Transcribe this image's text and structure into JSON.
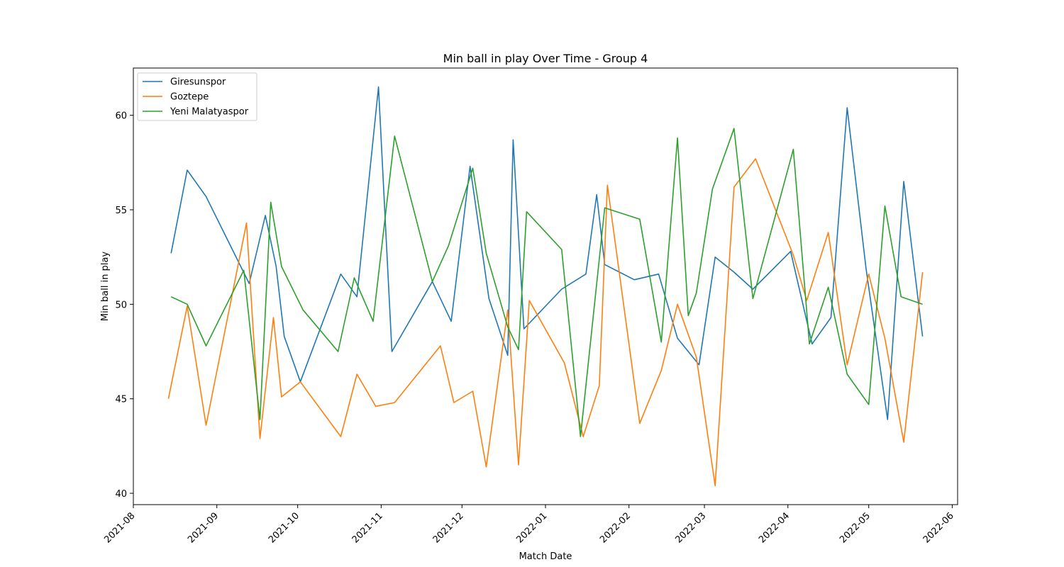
{
  "chart_data": {
    "type": "line",
    "title": "Min ball in play Over Time - Group 4",
    "xlabel": "Match Date",
    "ylabel": "Min ball in play",
    "xlim": [
      "2021-08-01",
      "2022-06-03"
    ],
    "ylim": [
      39.4,
      62.5
    ],
    "yticks": [
      40,
      45,
      50,
      55,
      60
    ],
    "xticks": [
      "2021-08-01",
      "2021-09-01",
      "2021-10-01",
      "2021-11-01",
      "2021-12-01",
      "2022-01-01",
      "2022-02-01",
      "2022-03-01",
      "2022-04-01",
      "2022-05-01",
      "2022-06-01"
    ],
    "xtick_labels": [
      "2021-08",
      "2021-09",
      "2021-10",
      "2021-11",
      "2021-12",
      "2022-01",
      "2022-02",
      "2022-03",
      "2022-04",
      "2022-05",
      "2022-06"
    ],
    "legend_position": "top-left",
    "grid": false,
    "series": [
      {
        "name": "Giresunspor",
        "color": "#1f77b4",
        "points": [
          [
            "2021-08-15",
            52.7
          ],
          [
            "2021-08-21",
            57.1
          ],
          [
            "2021-08-28",
            55.7
          ],
          [
            "2021-09-13",
            51.1
          ],
          [
            "2021-09-19",
            54.7
          ],
          [
            "2021-09-23",
            52.0
          ],
          [
            "2021-09-26",
            48.3
          ],
          [
            "2021-10-02",
            45.9
          ],
          [
            "2021-10-17",
            51.6
          ],
          [
            "2021-10-23",
            50.4
          ],
          [
            "2021-10-31",
            61.5
          ],
          [
            "2021-11-05",
            47.5
          ],
          [
            "2021-11-20",
            51.2
          ],
          [
            "2021-11-27",
            49.1
          ],
          [
            "2021-12-04",
            57.3
          ],
          [
            "2021-12-11",
            50.3
          ],
          [
            "2021-12-18",
            47.3
          ],
          [
            "2021-12-20",
            58.7
          ],
          [
            "2021-12-24",
            48.7
          ],
          [
            "2022-01-07",
            50.8
          ],
          [
            "2022-01-16",
            51.6
          ],
          [
            "2022-01-20",
            55.8
          ],
          [
            "2022-01-23",
            52.1
          ],
          [
            "2022-02-03",
            51.3
          ],
          [
            "2022-02-12",
            51.6
          ],
          [
            "2022-02-19",
            48.2
          ],
          [
            "2022-02-27",
            46.8
          ],
          [
            "2022-03-05",
            52.5
          ],
          [
            "2022-03-12",
            51.7
          ],
          [
            "2022-03-19",
            50.8
          ],
          [
            "2022-04-02",
            52.8
          ],
          [
            "2022-04-10",
            47.9
          ],
          [
            "2022-04-17",
            49.3
          ],
          [
            "2022-04-23",
            60.4
          ],
          [
            "2022-04-30",
            51.9
          ],
          [
            "2022-05-08",
            43.9
          ],
          [
            "2022-05-14",
            56.5
          ],
          [
            "2022-05-21",
            48.3
          ]
        ]
      },
      {
        "name": "Goztepe",
        "color": "#ff7f0e",
        "points": [
          [
            "2021-08-14",
            45.0
          ],
          [
            "2021-08-21",
            49.9
          ],
          [
            "2021-08-28",
            43.6
          ],
          [
            "2021-09-12",
            54.3
          ],
          [
            "2021-09-17",
            42.9
          ],
          [
            "2021-09-22",
            49.3
          ],
          [
            "2021-09-25",
            45.1
          ],
          [
            "2021-10-02",
            45.9
          ],
          [
            "2021-10-17",
            43.0
          ],
          [
            "2021-10-23",
            46.3
          ],
          [
            "2021-10-30",
            44.6
          ],
          [
            "2021-11-06",
            44.8
          ],
          [
            "2021-11-23",
            47.8
          ],
          [
            "2021-11-28",
            44.8
          ],
          [
            "2021-12-05",
            45.4
          ],
          [
            "2021-12-10",
            41.4
          ],
          [
            "2021-12-18",
            49.7
          ],
          [
            "2021-12-22",
            41.5
          ],
          [
            "2021-12-26",
            50.2
          ],
          [
            "2022-01-08",
            46.9
          ],
          [
            "2022-01-15",
            43.0
          ],
          [
            "2022-01-21",
            45.7
          ],
          [
            "2022-01-24",
            56.3
          ],
          [
            "2022-02-05",
            43.7
          ],
          [
            "2022-02-13",
            46.5
          ],
          [
            "2022-02-19",
            50.0
          ],
          [
            "2022-02-26",
            47.2
          ],
          [
            "2022-03-05",
            40.4
          ],
          [
            "2022-03-12",
            56.2
          ],
          [
            "2022-03-20",
            57.7
          ],
          [
            "2022-04-03",
            52.6
          ],
          [
            "2022-04-08",
            50.2
          ],
          [
            "2022-04-16",
            53.8
          ],
          [
            "2022-04-23",
            46.8
          ],
          [
            "2022-05-01",
            51.6
          ],
          [
            "2022-05-07",
            48.2
          ],
          [
            "2022-05-14",
            42.7
          ],
          [
            "2022-05-21",
            51.7
          ]
        ]
      },
      {
        "name": "Yeni Malatyaspor",
        "color": "#2ca02c",
        "points": [
          [
            "2021-08-15",
            50.4
          ],
          [
            "2021-08-21",
            50.0
          ],
          [
            "2021-08-28",
            47.8
          ],
          [
            "2021-09-11",
            51.8
          ],
          [
            "2021-09-17",
            43.9
          ],
          [
            "2021-09-21",
            55.4
          ],
          [
            "2021-09-25",
            52.0
          ],
          [
            "2021-10-03",
            49.7
          ],
          [
            "2021-10-16",
            47.5
          ],
          [
            "2021-10-22",
            51.4
          ],
          [
            "2021-10-29",
            49.1
          ],
          [
            "2021-11-06",
            58.9
          ],
          [
            "2021-11-20",
            51.2
          ],
          [
            "2021-11-26",
            53.1
          ],
          [
            "2021-12-05",
            57.2
          ],
          [
            "2021-12-10",
            52.7
          ],
          [
            "2021-12-18",
            48.8
          ],
          [
            "2021-12-22",
            47.6
          ],
          [
            "2021-12-25",
            54.9
          ],
          [
            "2022-01-07",
            52.9
          ],
          [
            "2022-01-14",
            43.0
          ],
          [
            "2022-01-23",
            55.1
          ],
          [
            "2022-02-05",
            54.5
          ],
          [
            "2022-02-13",
            48.0
          ],
          [
            "2022-02-19",
            58.8
          ],
          [
            "2022-02-23",
            49.4
          ],
          [
            "2022-02-26",
            50.6
          ],
          [
            "2022-03-04",
            56.1
          ],
          [
            "2022-03-12",
            59.3
          ],
          [
            "2022-03-19",
            50.3
          ],
          [
            "2022-04-03",
            58.2
          ],
          [
            "2022-04-09",
            47.9
          ],
          [
            "2022-04-16",
            50.9
          ],
          [
            "2022-04-23",
            46.3
          ],
          [
            "2022-05-01",
            44.7
          ],
          [
            "2022-05-07",
            55.2
          ],
          [
            "2022-05-13",
            50.4
          ],
          [
            "2022-05-21",
            50.0
          ]
        ]
      }
    ]
  }
}
